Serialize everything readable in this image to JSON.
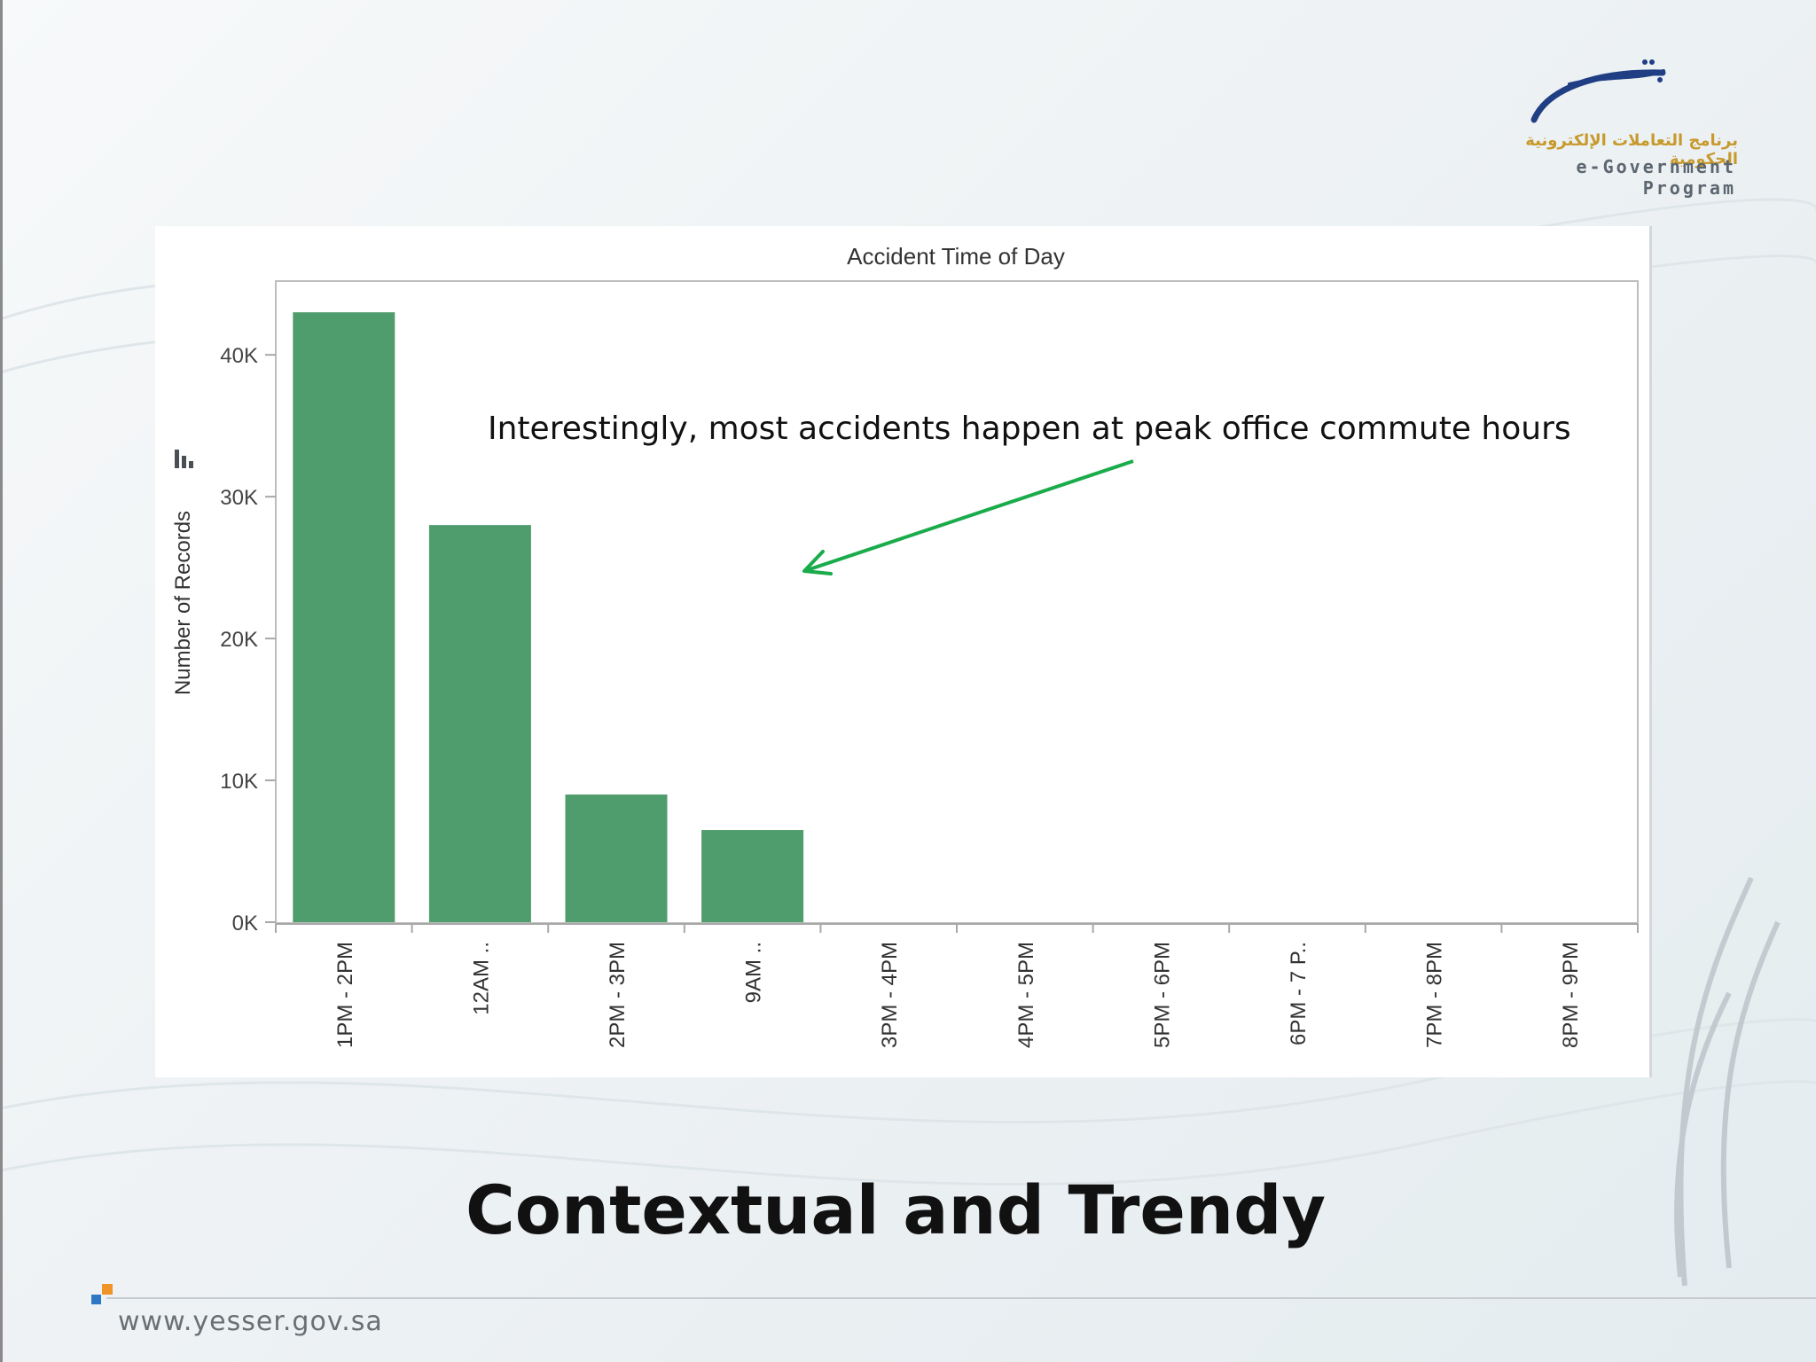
{
  "slide": {
    "title": "Contextual and Trendy",
    "footer_url": "www.yesser.gov.sa",
    "logo": {
      "name": "e-government-program-logo",
      "arabic_text": "برنامج التعاملات الإلكترونية الحكومية",
      "english_text": "e-Government Program"
    },
    "annotation": "Interestingly, most accidents happen at peak office commute hours"
  },
  "colors": {
    "bar": "#4f9c6c",
    "arrow": "#1aab4b",
    "axis": "#a8a8a8",
    "logo_blue": "#1f3e84",
    "logo_gold": "#c79a2c",
    "footer_orange": "#f0942a",
    "footer_blue": "#2f77c3"
  },
  "chart_data": {
    "type": "bar",
    "title": "Accident Time of Day",
    "xlabel": "",
    "ylabel": "Number of Records",
    "categories": [
      "1PM - 2PM",
      "12AM ..",
      "2PM - 3PM",
      "9AM ..",
      "3PM - 4PM",
      "4PM - 5PM",
      "5PM - 6PM",
      "6PM - 7 P..",
      "7PM - 8PM",
      "8PM - 9PM"
    ],
    "values": [
      43000,
      28000,
      9000,
      6500,
      0,
      0,
      0,
      0,
      0,
      0
    ],
    "yticks": [
      0,
      10000,
      20000,
      30000,
      40000
    ],
    "ytick_labels": [
      "0K",
      "10K",
      "20K",
      "30K",
      "40K"
    ],
    "ylim": [
      0,
      45200
    ],
    "grid": false,
    "legend": "none",
    "ylabel_icon": "bar-chart-icon"
  }
}
